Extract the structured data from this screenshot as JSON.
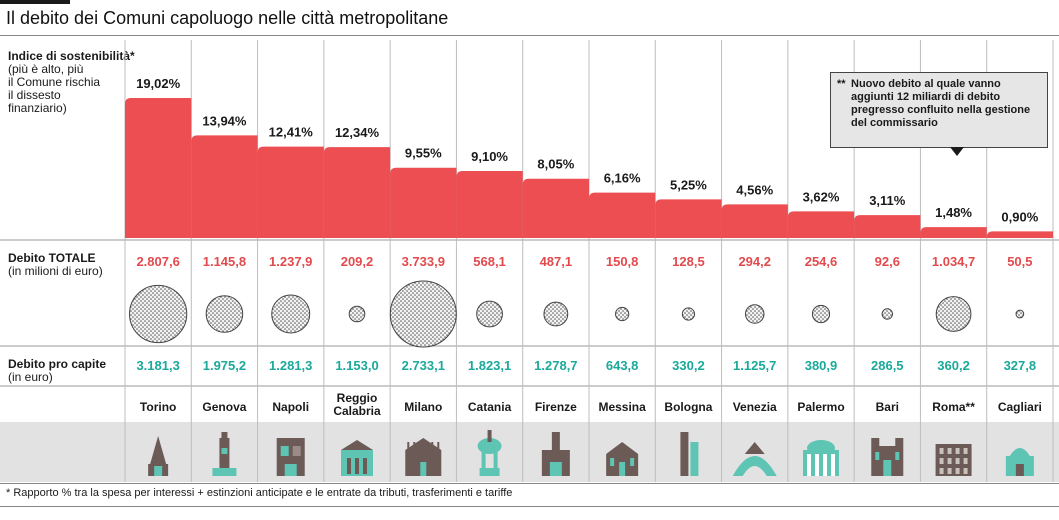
{
  "title": "Il debito dei Comuni capoluogo nelle città metropolitane",
  "labels": {
    "indice_title": "Indice di sostenibilità*",
    "indice_lines": [
      "(più è alto, più",
      "il Comune rischia",
      "il dissesto",
      "finanziario)"
    ],
    "debito_totale_title": "Debito TOTALE",
    "debito_totale_unit": "(in milioni di euro)",
    "pro_capite_title": "Debito pro capite",
    "pro_capite_unit": "(in euro)"
  },
  "note": {
    "star": "**",
    "text": "Nuovo debito al quale vanno aggiunti 12 miliardi di debito pregresso confluito nella gestione del commissario"
  },
  "footnote": "* Rapporto % tra la spesa per interessi + estinzioni anticipate e le entrate da tributi, trasferimenti e tariffe",
  "colors": {
    "bar": "#ec4e51",
    "total_text": "#e24a4d",
    "percapita_text": "#1aa99a",
    "landmark": "#6b5a56",
    "landmark_accent": "#5ec4b4",
    "band": "#e2e2e2"
  },
  "chart_data": {
    "type": "table",
    "categories": [
      "Torino",
      "Genova",
      "Napoli",
      "Reggio Calabria",
      "Milano",
      "Catania",
      "Firenze",
      "Messina",
      "Bologna",
      "Venezia",
      "Palermo",
      "Bari",
      "Roma**",
      "Cagliari"
    ],
    "series": [
      {
        "name": "Indice di sostenibilità",
        "values": [
          19.02,
          13.94,
          12.41,
          12.34,
          9.55,
          9.1,
          8.05,
          6.16,
          5.25,
          4.56,
          3.62,
          3.11,
          1.48,
          0.9
        ],
        "labels": [
          "19,02%",
          "13,94%",
          "12,41%",
          "12,34%",
          "9,55%",
          "9,10%",
          "8,05%",
          "6,16%",
          "5,25%",
          "4,56%",
          "3,62%",
          "3,11%",
          "1,48%",
          "0,90%"
        ]
      },
      {
        "name": "Debito TOTALE",
        "values": [
          2807.6,
          1145.8,
          1237.9,
          209.2,
          3733.9,
          568.1,
          487.1,
          150.8,
          128.5,
          294.2,
          254.6,
          92.6,
          1034.7,
          50.5
        ],
        "labels": [
          "2.807,6",
          "1.145,8",
          "1.237,9",
          "209,2",
          "3.733,9",
          "568,1",
          "487,1",
          "150,8",
          "128,5",
          "294,2",
          "254,6",
          "92,6",
          "1.034,7",
          "50,5"
        ]
      },
      {
        "name": "Debito pro capite",
        "values": [
          3181.3,
          1975.2,
          1281.3,
          1153.0,
          2733.1,
          1823.1,
          1278.7,
          643.8,
          330.2,
          1125.7,
          380.9,
          286.5,
          360.2,
          327.8
        ],
        "labels": [
          "3.181,3",
          "1.975,2",
          "1.281,3",
          "1.153,0",
          "2.733,1",
          "1.823,1",
          "1.278,7",
          "643,8",
          "330,2",
          "1.125,7",
          "380,9",
          "286,5",
          "360,2",
          "327,8"
        ]
      }
    ],
    "city_labels": [
      [
        "Torino"
      ],
      [
        "Genova"
      ],
      [
        "Napoli"
      ],
      [
        "Reggio",
        "Calabria"
      ],
      [
        "Milano"
      ],
      [
        "Catania"
      ],
      [
        "Firenze"
      ],
      [
        "Messina"
      ],
      [
        "Bologna"
      ],
      [
        "Venezia"
      ],
      [
        "Palermo"
      ],
      [
        "Bari"
      ],
      [
        "Roma**"
      ],
      [
        "Cagliari"
      ]
    ],
    "landmark_icons": [
      "mole-antonelliana-icon",
      "lanterna-icon",
      "maschio-angioino-icon",
      "duomo-reggio-icon",
      "duomo-milano-icon",
      "elephant-fountain-icon",
      "palazzo-vecchio-icon",
      "duomo-messina-icon",
      "due-torri-icon",
      "rialto-bridge-icon",
      "teatro-massimo-icon",
      "basilica-bari-icon",
      "colosseum-icon",
      "bastione-icon"
    ]
  }
}
